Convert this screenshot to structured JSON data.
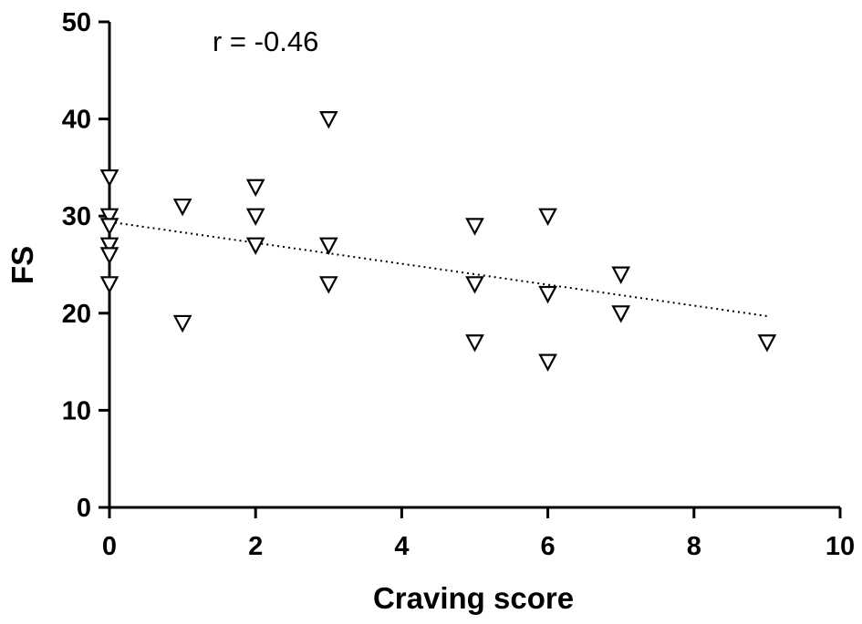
{
  "chart_data": {
    "type": "scatter",
    "xlabel": "Craving score",
    "ylabel": "FS",
    "xlim": [
      0,
      10
    ],
    "ylim": [
      0,
      50
    ],
    "xticks": [
      0,
      2,
      4,
      6,
      8,
      10
    ],
    "yticks": [
      0,
      10,
      20,
      30,
      40,
      50
    ],
    "annotation": "r = -0.46",
    "marker": "open-down-triangle",
    "points": [
      {
        "x": 0,
        "y": 34
      },
      {
        "x": 0,
        "y": 30
      },
      {
        "x": 0,
        "y": 29
      },
      {
        "x": 0,
        "y": 27
      },
      {
        "x": 0,
        "y": 26
      },
      {
        "x": 0,
        "y": 23
      },
      {
        "x": 1,
        "y": 31
      },
      {
        "x": 1,
        "y": 19
      },
      {
        "x": 2,
        "y": 33
      },
      {
        "x": 2,
        "y": 30
      },
      {
        "x": 2,
        "y": 27
      },
      {
        "x": 3,
        "y": 40
      },
      {
        "x": 3,
        "y": 27
      },
      {
        "x": 3,
        "y": 23
      },
      {
        "x": 5,
        "y": 29
      },
      {
        "x": 5,
        "y": 23
      },
      {
        "x": 5,
        "y": 17
      },
      {
        "x": 6,
        "y": 30
      },
      {
        "x": 6,
        "y": 22
      },
      {
        "x": 6,
        "y": 15
      },
      {
        "x": 7,
        "y": 24
      },
      {
        "x": 7,
        "y": 20
      },
      {
        "x": 9,
        "y": 17
      }
    ],
    "trendline": {
      "x": [
        0,
        9
      ],
      "y": [
        29.4,
        19.7
      ],
      "style": "dotted"
    }
  }
}
